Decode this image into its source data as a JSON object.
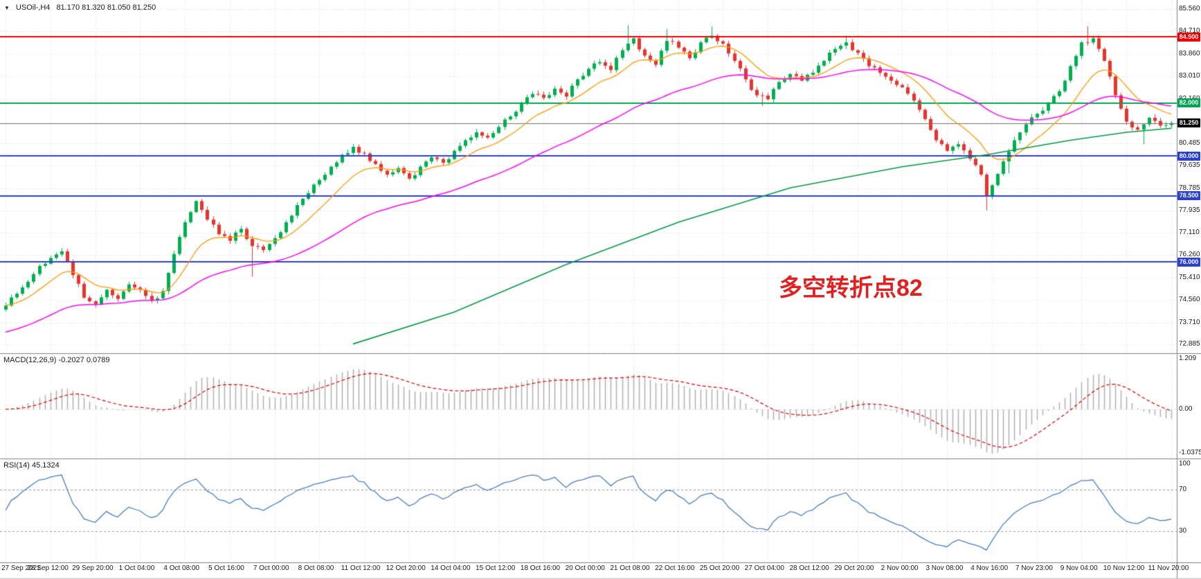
{
  "header": {
    "dropdown_icon": "▼",
    "symbol": "USOil-,H4",
    "ohlc": "81.170 81.320 81.050 81.250"
  },
  "annotation": {
    "text": "多空转折点82"
  },
  "colors": {
    "bull": "#00b050",
    "bear": "#e8342c",
    "grid": "#dcdcdc",
    "ma_fast": "#ff9900",
    "ma_mid": "#ff00ff",
    "ma_slow": "#009944",
    "level_red": "#f20000",
    "level_green": "#00a651",
    "level_blue": "#2b3fd4",
    "price_line": "#707070",
    "badge_black": "#000000",
    "macd_hist": "#b0b0b0",
    "macd_signal": "#e00000",
    "rsi_line": "#4a7ebb",
    "rsi_level": "#9a9a9a",
    "separator": "#808080",
    "axis_text": "#1a1a1a",
    "annotation": "#e32020"
  },
  "chart_data": {
    "type": "candlestick",
    "symbol": "USOil-",
    "timeframe": "H4",
    "current_ohlc": {
      "open": "81.170",
      "high": "81.320",
      "low": "81.050",
      "close": "81.250"
    },
    "price_axis": {
      "min": 72.55,
      "max": 85.9,
      "ticks": [
        "85.560",
        "84.710",
        "83.860",
        "83.010",
        "82.160",
        "80.485",
        "79.635",
        "78.785",
        "77.935",
        "77.110",
        "76.260",
        "75.410",
        "74.560",
        "73.710",
        "72.885"
      ]
    },
    "levels": [
      {
        "price": 84.5,
        "label": "84.500",
        "color": "#f20000"
      },
      {
        "price": 82.0,
        "label": "82.000",
        "color": "#00a651"
      },
      {
        "price": 80.0,
        "label": "80.000",
        "color": "#2b3fd4"
      },
      {
        "price": 78.5,
        "label": "78.500",
        "color": "#2b3fd4"
      },
      {
        "price": 76.0,
        "label": "76.000",
        "color": "#2b3fd4"
      }
    ],
    "current_price": {
      "value": 81.25,
      "label": "81.250"
    },
    "candles": {
      "count": 209,
      "first_open": 74.2,
      "noise": 0.1,
      "wick": 0.1,
      "close_anchors": [
        [
          0,
          74.35
        ],
        [
          2,
          74.8
        ],
        [
          4,
          75.25
        ],
        [
          6,
          75.85
        ],
        [
          8,
          76.15
        ],
        [
          10,
          76.4
        ],
        [
          12,
          75.5
        ],
        [
          14,
          74.65
        ],
        [
          16,
          74.4
        ],
        [
          18,
          74.95
        ],
        [
          20,
          74.6
        ],
        [
          22,
          75.15
        ],
        [
          24,
          74.95
        ],
        [
          26,
          74.55
        ],
        [
          28,
          74.9
        ],
        [
          30,
          76.3
        ],
        [
          32,
          77.5
        ],
        [
          34,
          78.3
        ],
        [
          36,
          77.6
        ],
        [
          38,
          77.05
        ],
        [
          40,
          76.8
        ],
        [
          42,
          77.25
        ],
        [
          44,
          76.6
        ],
        [
          46,
          76.45
        ],
        [
          48,
          76.9
        ],
        [
          50,
          77.5
        ],
        [
          52,
          78.15
        ],
        [
          54,
          78.6
        ],
        [
          56,
          79.1
        ],
        [
          58,
          79.6
        ],
        [
          60,
          80.05
        ],
        [
          62,
          80.35
        ],
        [
          64,
          80.1
        ],
        [
          66,
          79.7
        ],
        [
          68,
          79.3
        ],
        [
          70,
          79.55
        ],
        [
          72,
          79.15
        ],
        [
          74,
          79.6
        ],
        [
          76,
          79.95
        ],
        [
          78,
          79.75
        ],
        [
          80,
          80.2
        ],
        [
          82,
          80.6
        ],
        [
          84,
          80.9
        ],
        [
          86,
          80.7
        ],
        [
          88,
          81.1
        ],
        [
          90,
          81.5
        ],
        [
          92,
          82.0
        ],
        [
          94,
          82.35
        ],
        [
          96,
          82.2
        ],
        [
          98,
          82.55
        ],
        [
          100,
          82.25
        ],
        [
          102,
          82.9
        ],
        [
          104,
          83.3
        ],
        [
          106,
          83.55
        ],
        [
          108,
          83.25
        ],
        [
          110,
          84.0
        ],
        [
          112,
          84.45
        ],
        [
          114,
          83.8
        ],
        [
          116,
          83.45
        ],
        [
          118,
          84.35
        ],
        [
          120,
          84.1
        ],
        [
          122,
          83.7
        ],
        [
          124,
          84.3
        ],
        [
          126,
          84.55
        ],
        [
          128,
          84.25
        ],
        [
          130,
          83.6
        ],
        [
          132,
          82.9
        ],
        [
          134,
          82.3
        ],
        [
          136,
          82.15
        ],
        [
          138,
          82.8
        ],
        [
          140,
          83.1
        ],
        [
          142,
          82.85
        ],
        [
          144,
          83.15
        ],
        [
          146,
          83.6
        ],
        [
          148,
          84.05
        ],
        [
          150,
          84.3
        ],
        [
          152,
          83.9
        ],
        [
          154,
          83.4
        ],
        [
          156,
          83.15
        ],
        [
          158,
          82.85
        ],
        [
          160,
          82.6
        ],
        [
          162,
          82.1
        ],
        [
          164,
          81.4
        ],
        [
          166,
          80.6
        ],
        [
          168,
          80.2
        ],
        [
          170,
          80.45
        ],
        [
          172,
          79.9
        ],
        [
          174,
          79.3
        ],
        [
          175,
          78.5
        ],
        [
          176,
          78.9
        ],
        [
          178,
          79.8
        ],
        [
          180,
          80.6
        ],
        [
          182,
          81.2
        ],
        [
          184,
          81.6
        ],
        [
          186,
          82.0
        ],
        [
          188,
          82.45
        ],
        [
          190,
          83.4
        ],
        [
          192,
          84.3
        ],
        [
          194,
          84.45
        ],
        [
          196,
          83.6
        ],
        [
          198,
          82.3
        ],
        [
          200,
          81.3
        ],
        [
          202,
          81.0
        ],
        [
          204,
          81.45
        ],
        [
          206,
          81.15
        ],
        [
          207,
          81.17
        ],
        [
          208,
          81.25
        ]
      ],
      "wick_spikes": [
        {
          "i": 44,
          "low": 75.45
        },
        {
          "i": 111,
          "high": 84.95
        },
        {
          "i": 118,
          "high": 84.8
        },
        {
          "i": 126,
          "high": 84.9
        },
        {
          "i": 135,
          "low": 81.9
        },
        {
          "i": 150,
          "high": 84.55
        },
        {
          "i": 175,
          "low": 77.95
        },
        {
          "i": 179,
          "low": 79.35
        },
        {
          "i": 193,
          "high": 84.9
        },
        {
          "i": 203,
          "low": 80.45
        },
        {
          "i": 208,
          "high": 81.32,
          "low": 81.05
        }
      ]
    },
    "moving_averages": [
      {
        "name": "ma-fast",
        "type": "ema",
        "period": 12,
        "color_key": "ma_fast"
      },
      {
        "name": "ma-mid",
        "type": "ema",
        "period": 44,
        "seed": 73.3,
        "color_key": "ma_mid"
      },
      {
        "name": "ma-slow",
        "type": "anchors",
        "color_key": "ma_slow",
        "points": [
          [
            62,
            72.9
          ],
          [
            80,
            74.1
          ],
          [
            100,
            75.9
          ],
          [
            120,
            77.5
          ],
          [
            140,
            78.8
          ],
          [
            160,
            79.6
          ],
          [
            175,
            80.05
          ],
          [
            190,
            80.6
          ],
          [
            200,
            80.9
          ],
          [
            208,
            81.05
          ]
        ]
      }
    ],
    "macd": {
      "label": "MACD(12,26,9) -0.2027 0.0789",
      "fast": 12,
      "slow": 26,
      "signal": 9,
      "main_value": "-0.2027",
      "signal_value": "0.0789",
      "ticks": [
        {
          "v": 1.209,
          "label": "1.209"
        },
        {
          "v": 0,
          "label": "0.00"
        },
        {
          "v": -1.0375,
          "label": "-1.0375"
        }
      ]
    },
    "rsi": {
      "label": "RSI(14) 45.1324",
      "period": 14,
      "value": "45.1324",
      "range": {
        "hi": 100,
        "lo": 0
      },
      "levels": [
        70,
        30
      ],
      "ticks": [
        {
          "v": 100,
          "label": "100"
        },
        {
          "v": 70,
          "label": "70"
        },
        {
          "v": 30,
          "label": "30"
        }
      ]
    },
    "bars_per_label": 8,
    "x_labels": [
      "27 Sep 2021",
      "28 Sep 12:00",
      "29 Sep 20:00",
      "1 Oct 04:00",
      "4 Oct 08:00",
      "5 Oct 16:00",
      "7 Oct 00:00",
      "8 Oct 08:00",
      "11 Oct 12:00",
      "12 Oct 20:00",
      "14 Oct 04:00",
      "15 Oct 12:00",
      "18 Oct 16:00",
      "20 Oct 00:00",
      "21 Oct 08:00",
      "22 Oct 16:00",
      "25 Oct 20:00",
      "27 Oct 04:00",
      "28 Oct 12:00",
      "29 Oct 20:00",
      "2 Nov 00:00",
      "3 Nov 08:00",
      "4 Nov 16:00",
      "7 Nov 23:00",
      "9 Nov 04:00",
      "10 Nov 12:00",
      "11 Nov 20:00"
    ]
  }
}
